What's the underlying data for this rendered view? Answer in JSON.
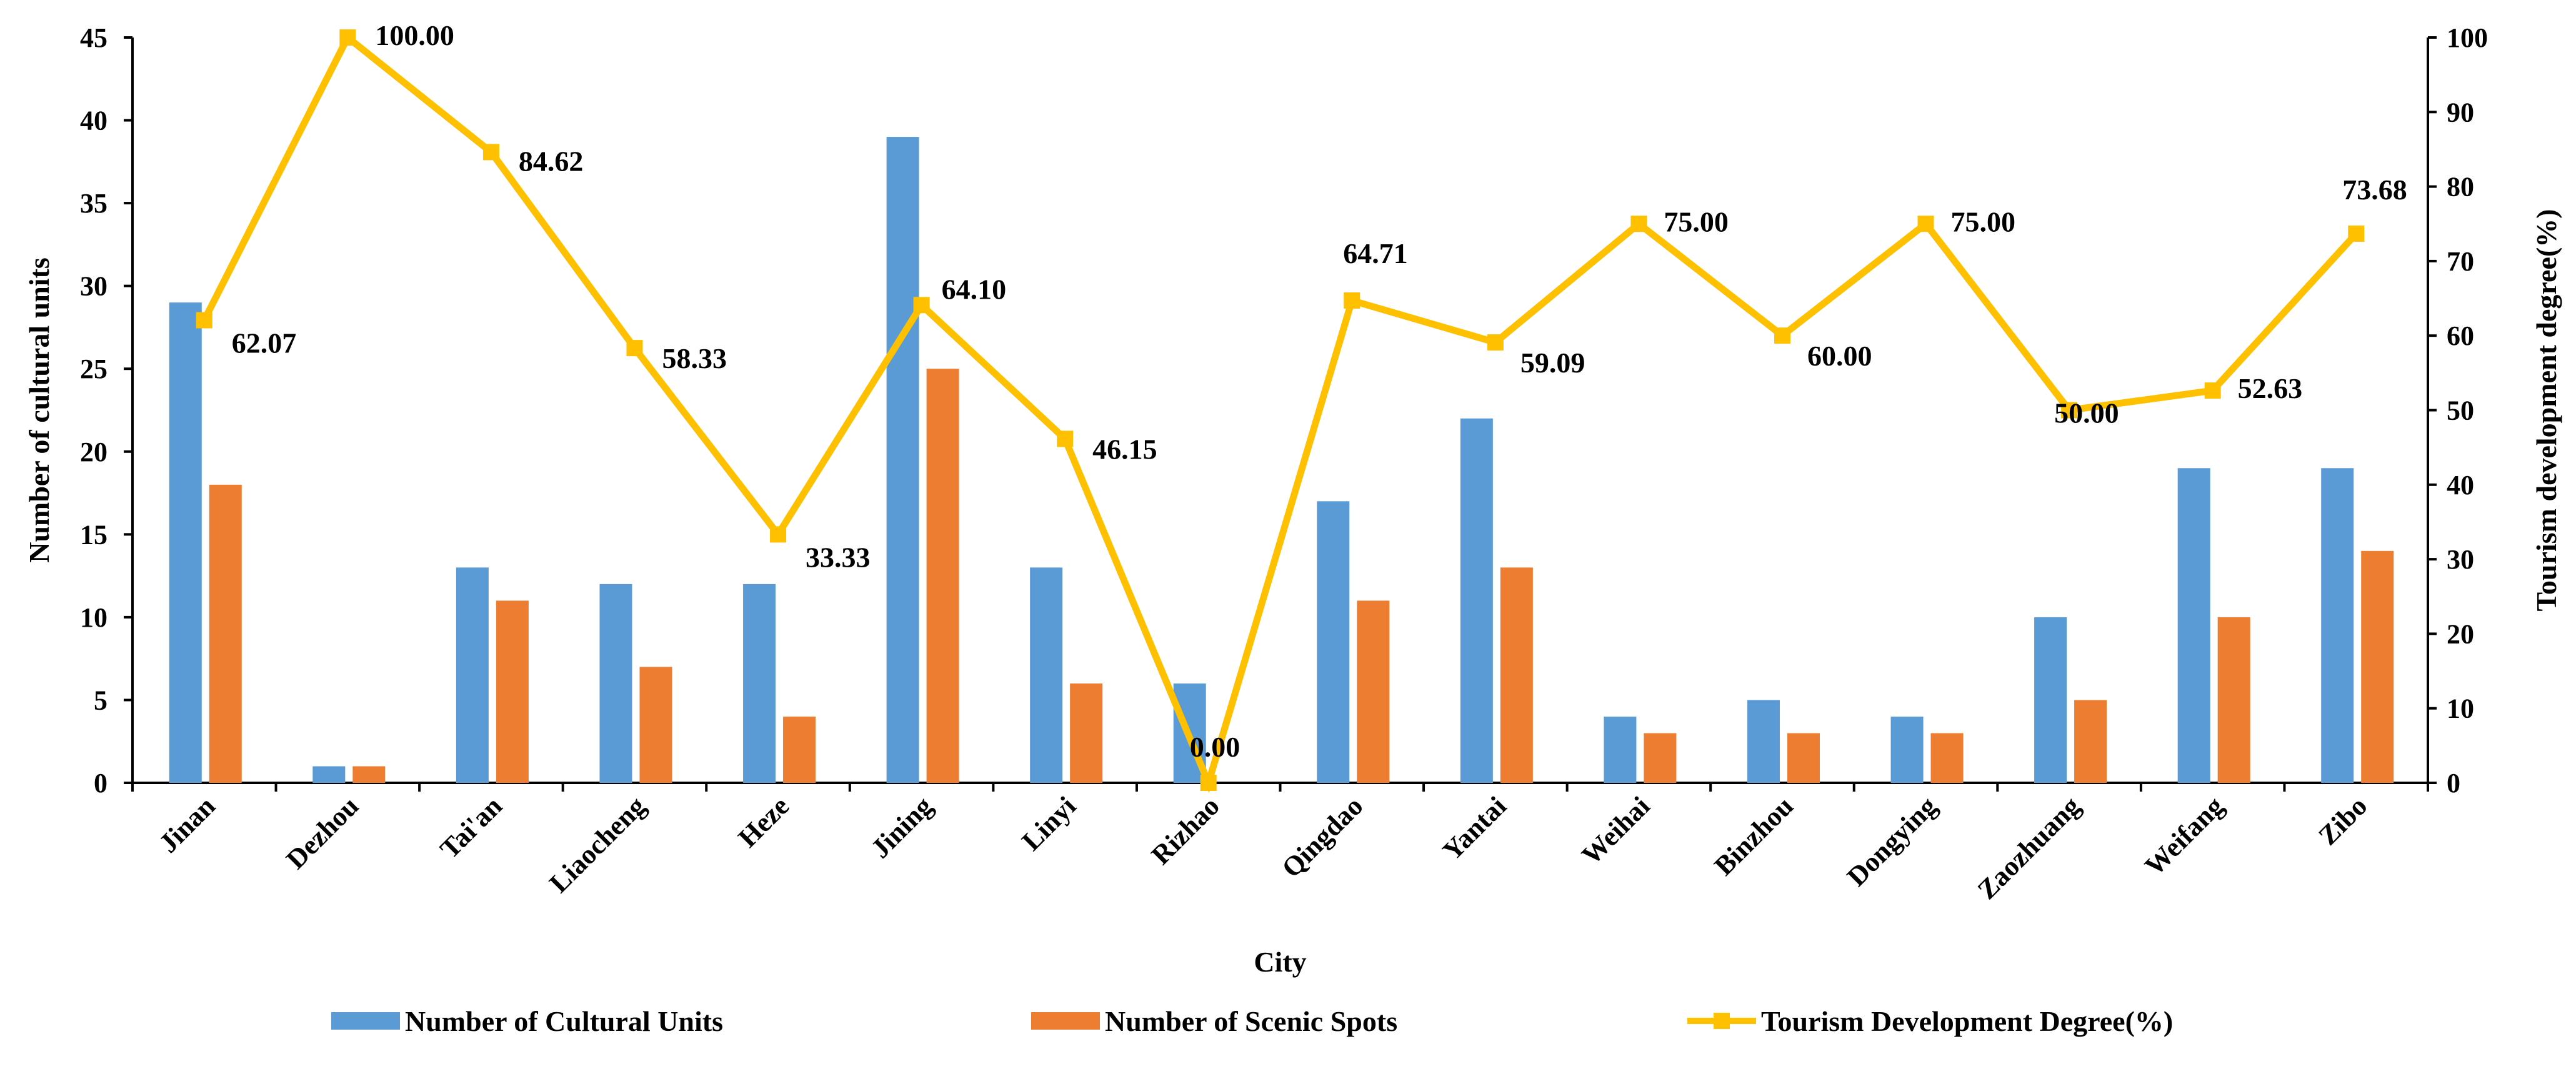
{
  "chart_data": {
    "type": "bar+line",
    "categories": [
      "Jinan",
      "Dezhou",
      "Tai'an",
      "Liaocheng",
      "Heze",
      "Jining",
      "Linyi",
      "Rizhao",
      "Qingdao",
      "Yantai",
      "Weihai",
      "Binzhou",
      "Dongying",
      "Zaozhuang",
      "Weifang",
      "Zibo"
    ],
    "series": [
      {
        "name": "Number of  Cultural  Units",
        "type": "bar",
        "axis": "left",
        "color": "#5B9BD5",
        "values": [
          29,
          1,
          13,
          12,
          12,
          39,
          13,
          6,
          17,
          22,
          4,
          5,
          4,
          10,
          19,
          19
        ]
      },
      {
        "name": "Number of  Scenic Spots",
        "type": "bar",
        "axis": "left",
        "color": "#ED7D31",
        "values": [
          18,
          1,
          11,
          7,
          4,
          25,
          6,
          0,
          11,
          13,
          3,
          3,
          3,
          5,
          10,
          14
        ]
      },
      {
        "name": "Tourism Development Degree(%)",
        "type": "line",
        "axis": "right",
        "color": "#FFC000",
        "values": [
          62.07,
          100.0,
          84.62,
          58.33,
          33.33,
          64.1,
          46.15,
          0.0,
          64.71,
          59.09,
          75.0,
          60.0,
          75.0,
          50.0,
          52.63,
          73.68
        ],
        "labels": [
          "62.07",
          "100.00",
          "84.62",
          "58.33",
          "33.33",
          "64.10",
          "46.15",
          "0.00",
          "64.71",
          "59.09",
          "75.00",
          "60.00",
          "75.00",
          "50.00",
          "52.63",
          "73.68"
        ]
      }
    ],
    "xlabel": "City",
    "ylabel": "Number of cultural units",
    "y2label": "Tourism development degree(%)",
    "ylim": [
      0,
      45
    ],
    "yticks": [
      "0",
      "5",
      "10",
      "15",
      "20",
      "25",
      "30",
      "35",
      "40",
      "45"
    ],
    "y2lim": [
      0,
      100
    ],
    "y2ticks": [
      "0",
      "10",
      "20",
      "30",
      "40",
      "50",
      "60",
      "70",
      "80",
      "90",
      "100"
    ],
    "grid": false,
    "legend_position": "bottom"
  }
}
